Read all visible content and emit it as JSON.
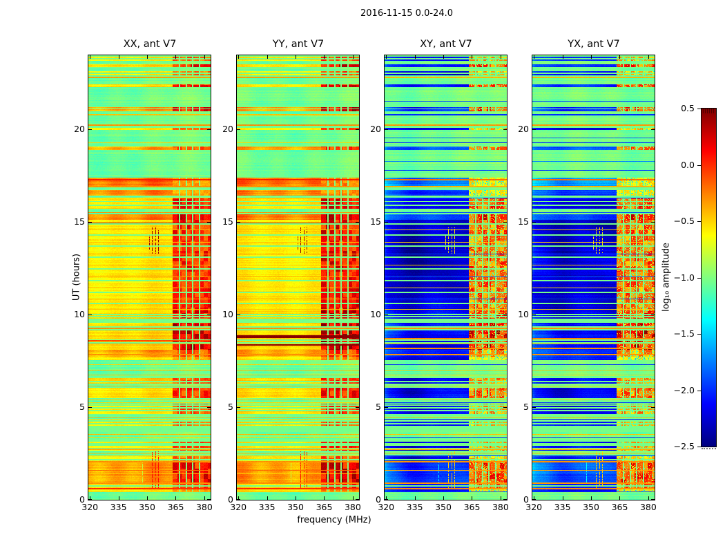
{
  "figure": {
    "title": "2016-11-15 0.0-24.0",
    "xlabel": "frequency (MHz)",
    "ylabel": "UT (hours)",
    "colorbar_label": "log₁₀ amplitude"
  },
  "chart_data": {
    "type": "heatmap",
    "title": "2016-11-15 0.0-24.0",
    "xlabel": "frequency (MHz)",
    "ylabel": "UT (hours)",
    "xlim": [
      319.2,
      383.3
    ],
    "ylim": [
      0,
      24
    ],
    "x_ticks": [
      320,
      335,
      350,
      365,
      380
    ],
    "x_tick_labels": [
      "320",
      "335",
      "350",
      "365",
      "380"
    ],
    "y_ticks": [
      0,
      5,
      10,
      15,
      20
    ],
    "y_tick_labels": [
      "0",
      "5",
      "10",
      "15",
      "20"
    ],
    "colorbar": {
      "label": "log₁₀ amplitude",
      "cmap": "jet",
      "vmin": -2.5,
      "vmax": 0.5,
      "ticks": [
        0.5,
        0.0,
        -0.5,
        -1.0,
        -1.5,
        -2.0,
        -2.5
      ],
      "tick_labels": [
        "0.5",
        "0.0",
        "−0.5",
        "−1.0",
        "−1.5",
        "−2.0",
        "−2.5"
      ]
    },
    "panels": [
      {
        "title": "XX, ant V7",
        "kind": "par",
        "seed": 3,
        "rfi_boost": 0
      },
      {
        "title": "YY, ant V7",
        "kind": "par",
        "seed": 7,
        "rfi_boost": 0.1
      },
      {
        "title": "XY, ant V7",
        "kind": "cross",
        "seed": 13,
        "rfi_boost": 0
      },
      {
        "title": "YX, ant V7",
        "kind": "cross",
        "seed": 19,
        "rfi_boost": 0
      }
    ],
    "quiet_level": -1.04,
    "bands": [
      [
        23.72,
        24.0,
        -0.55,
        -2.15,
        0.55,
        1
      ],
      [
        23.28,
        23.52,
        -0.5,
        -2.1,
        0.85,
        1
      ],
      [
        22.92,
        23.16,
        -0.58,
        -2.2,
        0.5,
        1
      ],
      [
        22.3,
        22.44,
        -0.52,
        -2.05,
        0.75,
        0
      ],
      [
        20.97,
        21.27,
        -0.33,
        -1.95,
        0.85,
        1
      ],
      [
        19.98,
        20.16,
        -0.58,
        -2.2,
        0.45,
        1
      ],
      [
        18.9,
        19.08,
        -0.35,
        -1.9,
        0.7,
        0
      ],
      [
        16.92,
        17.38,
        -0.16,
        -1.75,
        0.35,
        0
      ],
      [
        16.42,
        16.74,
        -0.25,
        -2.0,
        0.3,
        0
      ],
      [
        15.66,
        16.26,
        -0.52,
        -2.2,
        0.8,
        1
      ],
      [
        15.1,
        15.42,
        -0.22,
        -1.9,
        0.9,
        0
      ],
      [
        10.2,
        15.1,
        -0.55,
        -2.28,
        0.75,
        0
      ],
      [
        9.68,
        10.2,
        -0.5,
        -2.2,
        0.88,
        1
      ],
      [
        8.1,
        9.68,
        -0.5,
        -2.15,
        1.0,
        1
      ],
      [
        7.72,
        8.1,
        -0.32,
        -2.0,
        0.6,
        0
      ],
      [
        7.55,
        7.72,
        -0.55,
        -2.1,
        0.3,
        0
      ],
      [
        6.28,
        6.66,
        -0.5,
        -2.1,
        0.6,
        1
      ],
      [
        5.5,
        6.06,
        -0.52,
        -2.15,
        0.7,
        1
      ],
      [
        4.56,
        5.2,
        -0.55,
        -2.2,
        0.6,
        1
      ],
      [
        3.66,
        4.3,
        -0.52,
        -2.15,
        0.55,
        1
      ],
      [
        2.62,
        3.3,
        -0.55,
        -2.2,
        0.6,
        1
      ],
      [
        2.06,
        2.36,
        -0.55,
        -2.2,
        0.5,
        1
      ],
      [
        0.9,
        2.06,
        -0.3,
        -1.9,
        0.85,
        0
      ],
      [
        0.56,
        0.9,
        -0.5,
        -2.0,
        0.7,
        1
      ],
      [
        0.42,
        0.56,
        -0.58,
        -2.1,
        0.3,
        0
      ]
    ],
    "lines": [
      [
        22.85,
        -0.33,
        -0.4,
        2,
        null
      ],
      [
        21.55,
        null,
        -1.9,
        1,
        null
      ],
      [
        20.82,
        -0.45,
        -2.0,
        2,
        null
      ],
      [
        20.28,
        -0.3,
        -0.32,
        2,
        null
      ],
      [
        19.55,
        null,
        -1.85,
        1,
        null
      ],
      [
        19.3,
        -0.5,
        -2.05,
        1,
        null
      ],
      [
        18.3,
        null,
        -1.75,
        1,
        null
      ],
      [
        17.8,
        null,
        -1.95,
        1,
        null
      ],
      [
        17.33,
        0.05,
        -0.2,
        2,
        null
      ],
      [
        16.95,
        -0.3,
        -0.4,
        2,
        null
      ],
      [
        16.3,
        -0.45,
        -1.9,
        1,
        null
      ],
      [
        15.52,
        -0.3,
        -1.9,
        1,
        null
      ],
      [
        14.97,
        0.3,
        null,
        1,
        null
      ],
      [
        14.92,
        -1.03,
        -1.03,
        2,
        null
      ],
      [
        14.6,
        -0.42,
        -0.48,
        1,
        null
      ],
      [
        14.32,
        -1.03,
        -1.03,
        2,
        null
      ],
      [
        13.92,
        -0.45,
        -0.5,
        1,
        null
      ],
      [
        13.72,
        -1.03,
        -1.03,
        2,
        null
      ],
      [
        13.3,
        -0.4,
        -1.9,
        1,
        null
      ],
      [
        13.12,
        -1.03,
        -1.03,
        2,
        null
      ],
      [
        12.68,
        -0.45,
        -0.5,
        1,
        null
      ],
      [
        12.5,
        -1.03,
        -1.03,
        2,
        null
      ],
      [
        12.05,
        -0.38,
        -1.85,
        1,
        null
      ],
      [
        11.88,
        -1.03,
        -1.03,
        2,
        null
      ],
      [
        11.45,
        -0.45,
        -0.5,
        1,
        null
      ],
      [
        11.25,
        -1.03,
        -1.03,
        2,
        null
      ],
      [
        10.85,
        -0.4,
        -1.9,
        1,
        null
      ],
      [
        10.62,
        -1.03,
        -1.03,
        2,
        null
      ],
      [
        10.3,
        -0.45,
        -0.5,
        1,
        null
      ],
      [
        10.05,
        -1.03,
        -1.03,
        2,
        null
      ],
      [
        9.3,
        -0.3,
        -0.3,
        2,
        null
      ],
      [
        8.9,
        0.48,
        null,
        4,
        [
          1
        ]
      ],
      [
        8.75,
        null,
        -0.28,
        2,
        null
      ],
      [
        8.62,
        -0.1,
        null,
        2,
        [
          0
        ]
      ],
      [
        8.4,
        0.45,
        null,
        2,
        [
          1
        ]
      ],
      [
        8.42,
        -0.35,
        -0.3,
        1,
        [
          0,
          2,
          3
        ]
      ],
      [
        8.2,
        null,
        -0.3,
        2,
        null
      ],
      [
        7.86,
        -0.3,
        -0.32,
        2,
        null
      ],
      [
        7.3,
        -0.5,
        -2.0,
        1,
        null
      ],
      [
        7.0,
        -0.42,
        -0.45,
        1,
        null
      ],
      [
        6.75,
        -0.45,
        -0.5,
        1,
        null
      ],
      [
        6.15,
        -0.4,
        -0.45,
        1,
        null
      ],
      [
        5.42,
        -0.45,
        -0.45,
        1,
        null
      ],
      [
        5.28,
        -0.5,
        -2.0,
        1,
        null
      ],
      [
        4.48,
        -0.4,
        -0.42,
        1,
        null
      ],
      [
        4.35,
        -0.52,
        -2.05,
        1,
        null
      ],
      [
        3.55,
        -0.42,
        -0.45,
        1,
        null
      ],
      [
        3.38,
        -0.5,
        -2.0,
        1,
        null
      ],
      [
        2.75,
        -0.38,
        -0.38,
        2,
        null
      ],
      [
        2.55,
        -0.38,
        -0.4,
        1,
        null
      ],
      [
        2.42,
        -0.5,
        -2.0,
        1,
        null
      ],
      [
        2.08,
        -0.3,
        -0.3,
        2,
        null
      ],
      [
        1.62,
        -0.2,
        -0.35,
        1,
        null
      ],
      [
        1.45,
        -0.5,
        null,
        1,
        null
      ],
      [
        0.92,
        -0.3,
        -0.32,
        2,
        null
      ],
      [
        0.64,
        0.0,
        -0.3,
        2,
        null
      ],
      [
        0.5,
        -0.45,
        -2.0,
        1,
        null
      ]
    ],
    "vlines": [
      [
        352.4,
        0.6,
        2.6,
        0.1,
        -0.5
      ],
      [
        354.2,
        0.6,
        2.6,
        0.05,
        -0.45
      ],
      [
        355.8,
        0.6,
        2.6,
        0.1,
        -0.5
      ],
      [
        347.6,
        0.9,
        2.1,
        -0.8,
        -1.4
      ],
      [
        352.4,
        13.3,
        14.7,
        0.45,
        -0.55
      ],
      [
        354.2,
        13.3,
        14.7,
        0.4,
        -0.5
      ],
      [
        355.8,
        13.3,
        14.7,
        0.45,
        -0.55
      ],
      [
        350.9,
        13.5,
        14.3,
        0.4,
        -0.6
      ]
    ],
    "rfi": {
      "f0": 363.5,
      "f1": 383.3,
      "gaps": [
        367.0,
        370.5,
        374.0,
        377.5
      ],
      "gap_half": 0.33,
      "block_t": 0.28,
      "block_f": 2.3
    }
  }
}
